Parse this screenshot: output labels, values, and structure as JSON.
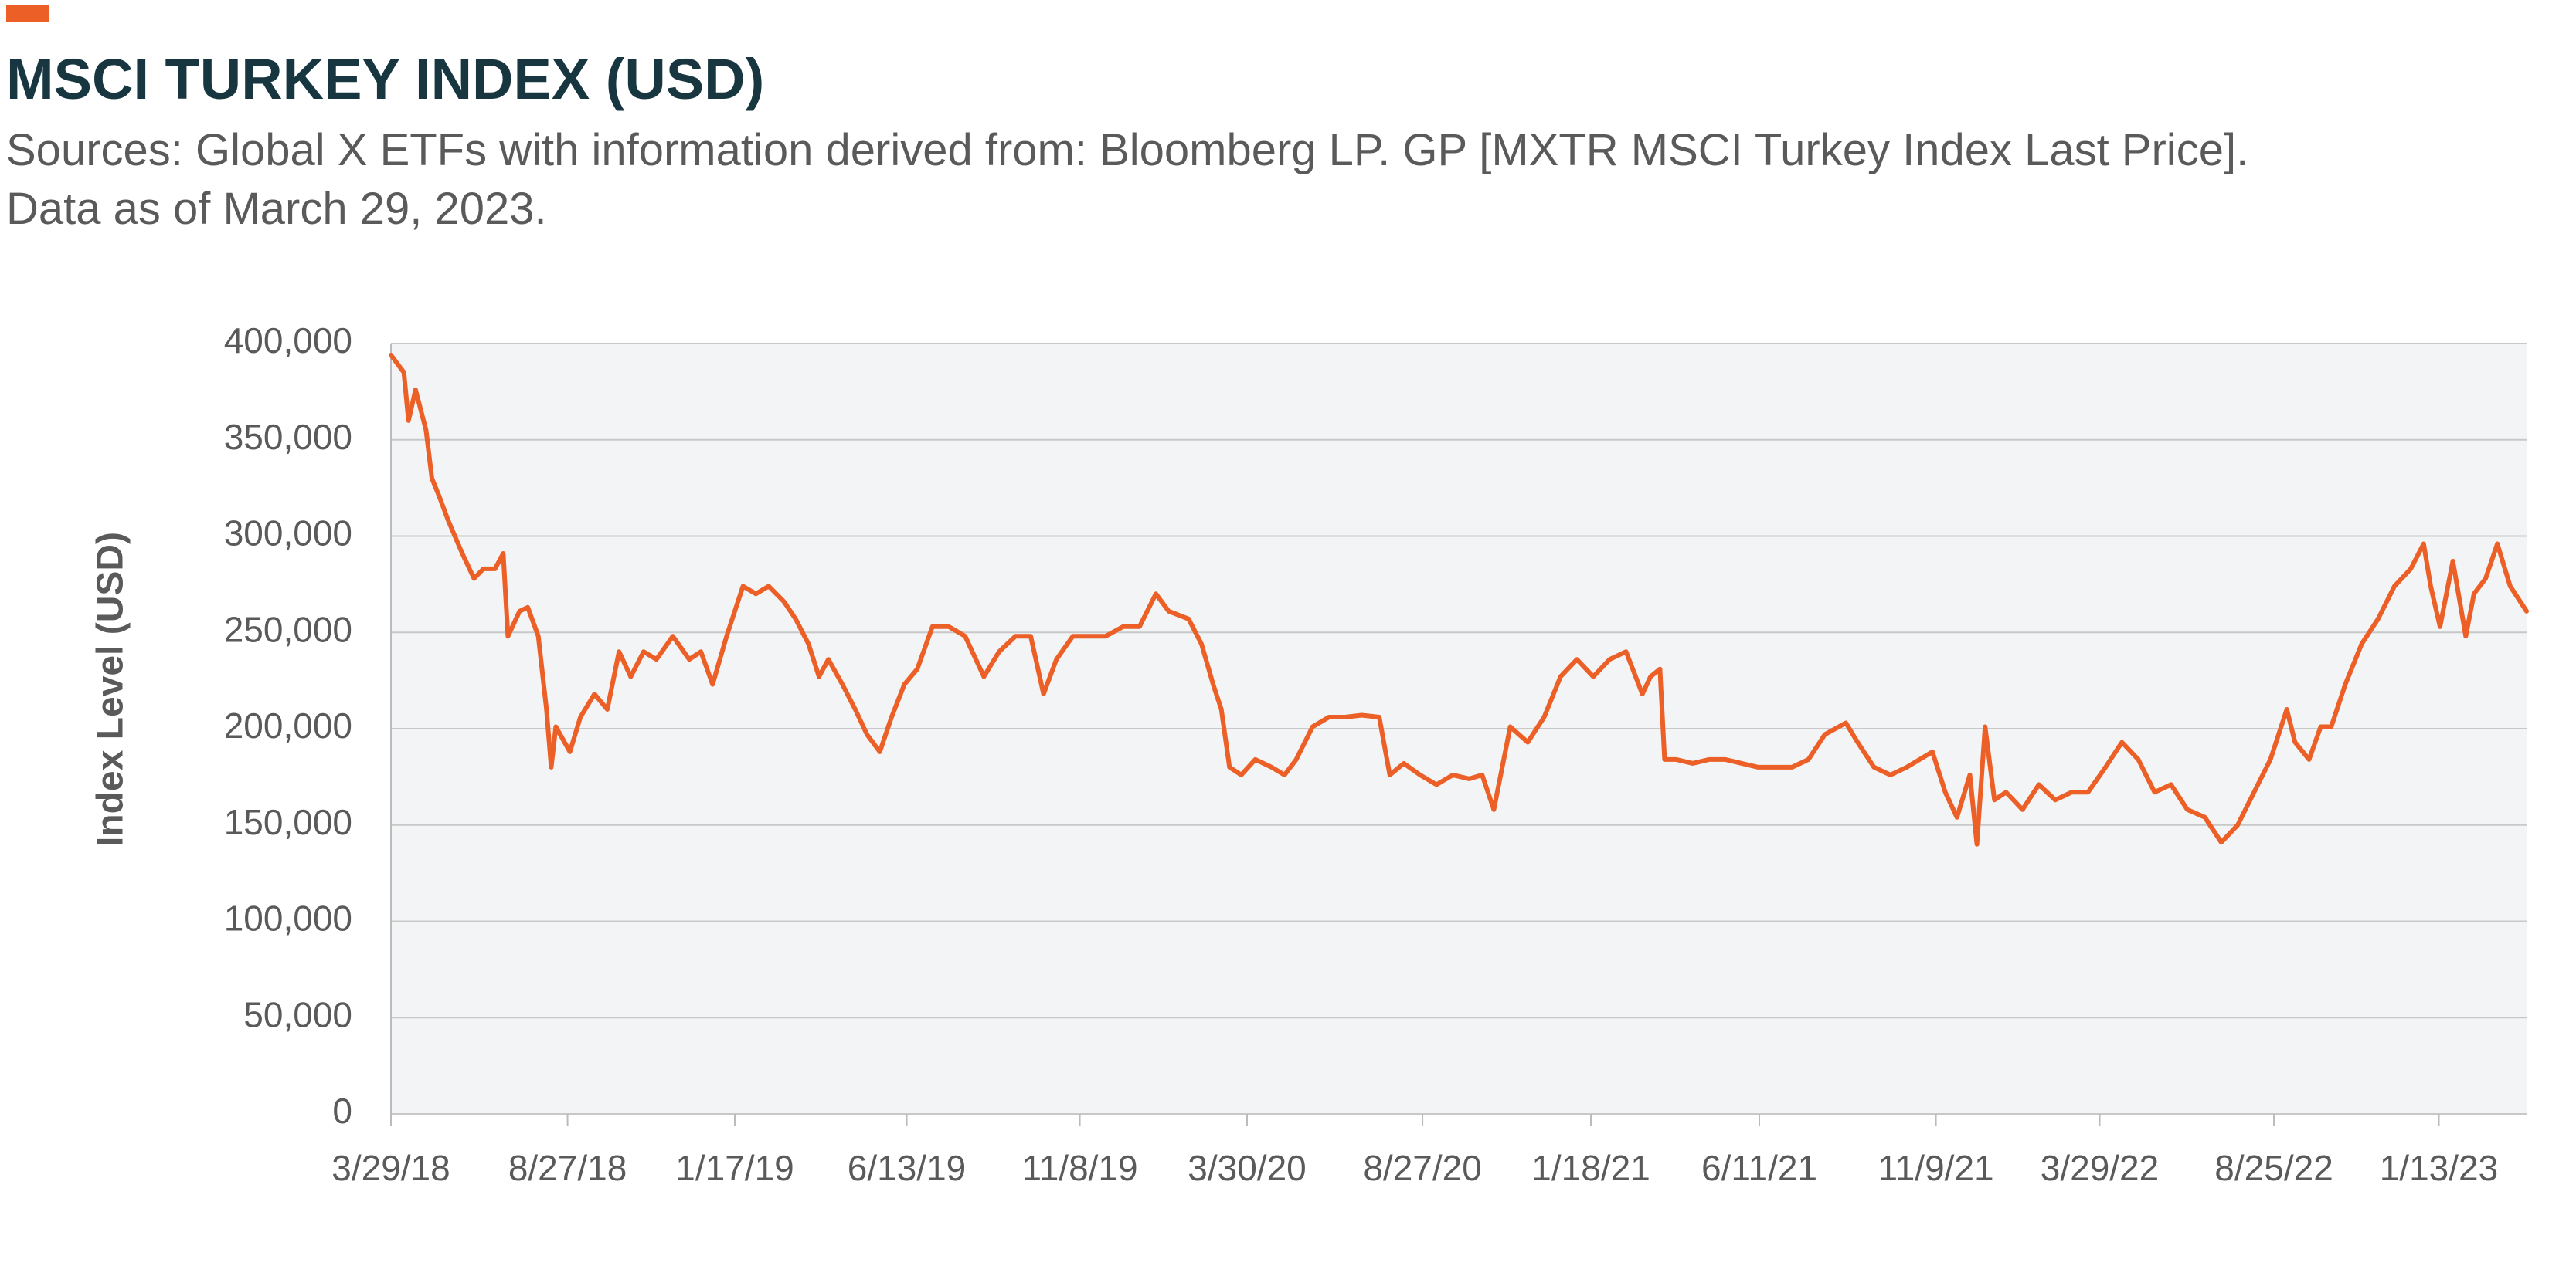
{
  "chart_data": {
    "type": "line",
    "title": "MSCI TURKEY INDEX (USD)",
    "subtitle": "Sources: Global X ETFs with information derived from: Bloomberg LP. GP [MXTR MSCI Turkey Index Last Price].",
    "note": "Data as of March 29, 2023.",
    "y_label": "Index Level (USD)",
    "color": "#ec5f26",
    "grid": true,
    "xlim": [
      "2018-03-29",
      "2023-03-29"
    ],
    "ylim": [
      0,
      400000
    ],
    "yticks": [
      0,
      {
        "value": 50000,
        "label": "50,000"
      },
      {
        "value": 100000,
        "label": "100,000"
      },
      {
        "value": 150000,
        "label": "150,000"
      },
      {
        "value": 200000,
        "label": "200,000"
      },
      {
        "value": 250000,
        "label": "250,000"
      },
      {
        "value": 300000,
        "label": "300,000"
      },
      {
        "value": 350000,
        "label": "350,000"
      },
      {
        "value": 400000,
        "label": "400,000"
      }
    ],
    "xticks": [
      {
        "value": "2018-03-29",
        "label": "3/29/18"
      },
      {
        "value": "2018-08-27",
        "label": "8/27/18"
      },
      {
        "value": "2019-01-17",
        "label": "1/17/19"
      },
      {
        "value": "2019-06-13",
        "label": "6/13/19"
      },
      {
        "value": "2019-11-08",
        "label": "11/8/19"
      },
      {
        "value": "2020-03-30",
        "label": "3/30/20"
      },
      {
        "value": "2020-08-27",
        "label": "8/27/20"
      },
      {
        "value": "2021-01-18",
        "label": "1/18/21"
      },
      {
        "value": "2021-06-11",
        "label": "6/11/21"
      },
      {
        "value": "2021-11-09",
        "label": "11/9/21"
      },
      {
        "value": "2022-03-29",
        "label": "3/29/22"
      },
      {
        "value": "2022-08-25",
        "label": "8/25/22"
      },
      {
        "value": "2023-01-13",
        "label": "1/13/23"
      }
    ],
    "x": [
      "2018-03-29",
      "2018-04-09",
      "2018-04-13",
      "2018-04-19",
      "2018-04-28",
      "2018-05-03",
      "2018-05-09",
      "2018-05-17",
      "2018-05-29",
      "2018-06-08",
      "2018-06-16",
      "2018-06-26",
      "2018-07-03",
      "2018-07-07",
      "2018-07-17",
      "2018-07-24",
      "2018-08-02",
      "2018-08-09",
      "2018-08-13",
      "2018-08-17",
      "2018-08-29",
      "2018-09-07",
      "2018-09-19",
      "2018-09-30",
      "2018-10-10",
      "2018-10-20",
      "2018-10-31",
      "2018-11-11",
      "2018-11-25",
      "2018-12-09",
      "2018-12-19",
      "2018-12-29",
      "2019-01-10",
      "2019-01-24",
      "2019-02-04",
      "2019-02-15",
      "2019-02-28",
      "2019-03-10",
      "2019-03-21",
      "2019-03-30",
      "2019-04-07",
      "2019-04-19",
      "2019-04-30",
      "2019-05-10",
      "2019-05-21",
      "2019-05-31",
      "2019-06-11",
      "2019-06-22",
      "2019-07-05",
      "2019-07-19",
      "2019-08-02",
      "2019-08-18",
      "2019-08-31",
      "2019-09-14",
      "2019-09-27",
      "2019-10-08",
      "2019-10-19",
      "2019-11-02",
      "2019-11-16",
      "2019-11-30",
      "2019-12-15",
      "2019-12-29",
      "2020-01-12",
      "2020-01-23",
      "2020-02-09",
      "2020-02-20",
      "2020-03-01",
      "2020-03-08",
      "2020-03-15",
      "2020-03-25",
      "2020-04-06",
      "2020-04-20",
      "2020-05-01",
      "2020-05-11",
      "2020-05-25",
      "2020-06-08",
      "2020-06-22",
      "2020-07-06",
      "2020-07-21",
      "2020-07-30",
      "2020-08-11",
      "2020-08-25",
      "2020-09-08",
      "2020-09-22",
      "2020-10-06",
      "2020-10-17",
      "2020-10-27",
      "2020-11-10",
      "2020-11-25",
      "2020-12-09",
      "2020-12-23",
      "2021-01-06",
      "2021-01-20",
      "2021-02-03",
      "2021-02-17",
      "2021-03-03",
      "2021-03-10",
      "2021-03-18",
      "2021-03-22",
      "2021-04-01",
      "2021-04-15",
      "2021-04-29",
      "2021-05-13",
      "2021-05-27",
      "2021-06-10",
      "2021-06-24",
      "2021-07-09",
      "2021-07-23",
      "2021-08-06",
      "2021-08-24",
      "2021-09-03",
      "2021-09-17",
      "2021-10-01",
      "2021-10-15",
      "2021-11-06",
      "2021-11-17",
      "2021-11-27",
      "2021-12-08",
      "2021-12-14",
      "2021-12-21",
      "2021-12-29",
      "2022-01-08",
      "2022-01-22",
      "2022-02-05",
      "2022-02-19",
      "2022-03-05",
      "2022-03-19",
      "2022-04-03",
      "2022-04-17",
      "2022-05-01",
      "2022-05-15",
      "2022-05-29",
      "2022-06-12",
      "2022-06-27",
      "2022-07-11",
      "2022-07-25",
      "2022-08-08",
      "2022-08-22",
      "2022-09-05",
      "2022-09-12",
      "2022-09-24",
      "2022-10-04",
      "2022-10-13",
      "2022-10-25",
      "2022-11-08",
      "2022-11-22",
      "2022-12-06",
      "2022-12-20",
      "2022-12-31",
      "2023-01-06",
      "2023-01-14",
      "2023-01-25",
      "2023-02-05",
      "2023-02-12",
      "2023-02-22",
      "2023-03-04",
      "2023-03-15",
      "2023-03-29"
    ],
    "values": [
      394000,
      385000,
      360000,
      376000,
      355000,
      330000,
      321000,
      308000,
      291000,
      278000,
      283000,
      283000,
      291000,
      248000,
      261000,
      263000,
      248000,
      210000,
      180000,
      201000,
      188000,
      206000,
      218000,
      210000,
      240000,
      227000,
      240000,
      236000,
      248000,
      236000,
      240000,
      223000,
      248000,
      274000,
      270000,
      274000,
      266000,
      257000,
      244000,
      227000,
      236000,
      223000,
      210000,
      197000,
      188000,
      206000,
      223000,
      231000,
      253000,
      253000,
      248000,
      227000,
      240000,
      248000,
      248000,
      218000,
      236000,
      248000,
      248000,
      248000,
      253000,
      253000,
      270000,
      261000,
      257000,
      244000,
      223000,
      210000,
      180000,
      176000,
      184000,
      180000,
      176000,
      184000,
      201000,
      206000,
      206000,
      207000,
      206000,
      176000,
      182000,
      176000,
      171000,
      176000,
      174000,
      176000,
      158000,
      201000,
      193000,
      206000,
      227000,
      236000,
      227000,
      236000,
      240000,
      218000,
      227000,
      231000,
      184000,
      184000,
      182000,
      184000,
      184000,
      182000,
      180000,
      180000,
      180000,
      184000,
      197000,
      203000,
      193000,
      180000,
      176000,
      180000,
      188000,
      167000,
      154000,
      176000,
      140000,
      201000,
      163000,
      167000,
      158000,
      171000,
      163000,
      167000,
      167000,
      180000,
      193000,
      184000,
      167000,
      171000,
      158000,
      154000,
      141000,
      150000,
      167000,
      184000,
      210000,
      193000,
      184000,
      201000,
      201000,
      223000,
      244000,
      257000,
      274000,
      283000,
      296000,
      274000,
      253000,
      287000,
      248000,
      270000,
      278000,
      296000,
      274000,
      261000
    ]
  }
}
